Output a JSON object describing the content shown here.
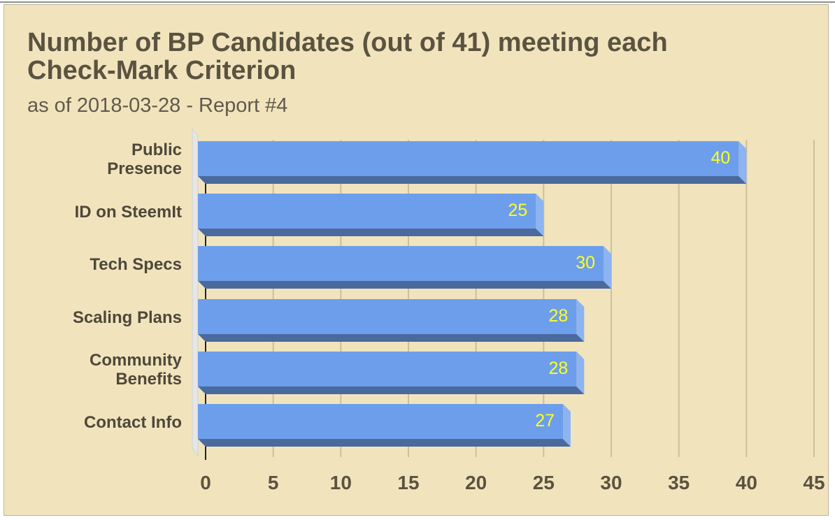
{
  "chart_data": {
    "type": "bar",
    "orientation": "horizontal",
    "style": "3d",
    "title": "Number of BP Candidates (out of 41) meeting each Check-Mark Criterion",
    "subtitle": "as of 2018-03-28 - Report #4",
    "categories": [
      [
        "Public",
        "Presence"
      ],
      [
        "ID on SteemIt"
      ],
      [
        "Tech Specs"
      ],
      [
        "Scaling Plans"
      ],
      [
        "Community",
        "Benefits"
      ],
      [
        "Contact Info"
      ]
    ],
    "values": [
      40,
      25,
      30,
      28,
      28,
      27
    ],
    "xlim": [
      0,
      45
    ],
    "xticks": [
      0,
      5,
      10,
      15,
      20,
      25,
      30,
      35,
      40,
      45
    ],
    "grid": "vertical",
    "legend": "none",
    "colors": {
      "background": "#f1e4bd",
      "bar_front": "#6d9eeb",
      "bar_bottom": "#4a6a9e",
      "bar_side": "#8db4f0",
      "data_label": "#ffff1e",
      "gridline": "#cbbf9c",
      "text": "#5a5340"
    }
  }
}
